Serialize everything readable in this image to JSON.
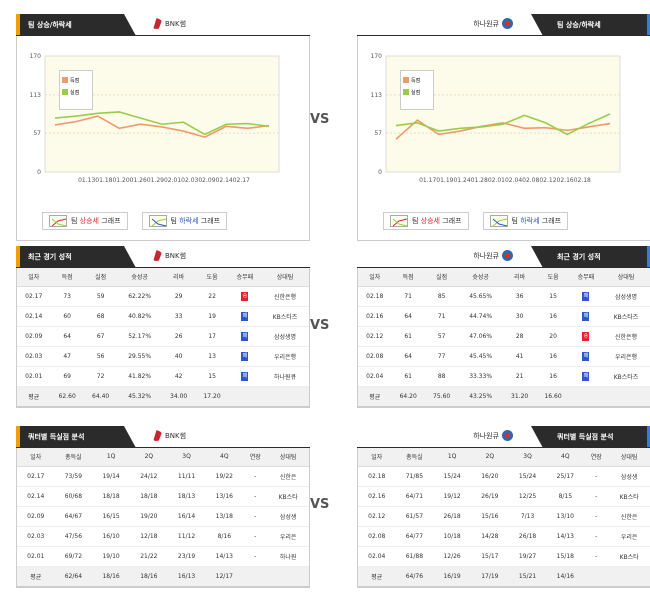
{
  "vs_label": "VS",
  "colors": {
    "loss": "#ee9a6a",
    "score": "#9acc4c",
    "win": "#e4232b",
    "lose": "#2d57c6"
  },
  "left": {
    "team": "BNK썸",
    "logo_icon": "bnk-logo",
    "trend": {
      "title": "팀 상승/하락세",
      "legend": {
        "loss": "득점",
        "score": "실점"
      },
      "chart_data": {
        "type": "line",
        "y_ticks": [
          0,
          57,
          113,
          170
        ],
        "ylim": [
          0,
          170
        ],
        "x_tick_text": "01.1301.1801.2001.2601.2902.0102.0302.0902.1402.17",
        "series": [
          {
            "name": "득점",
            "values": [
              69,
              74,
              82,
              64,
              70,
              66,
              60,
              51,
              67,
              64,
              68
            ]
          },
          {
            "name": "실점",
            "values": [
              79,
              82,
              86,
              88,
              79,
              70,
              73,
              55,
              70,
              71,
              67
            ]
          }
        ]
      },
      "btn_up": {
        "prefix": "팀 ",
        "mid": "상승세",
        "suffix": " 그래프"
      },
      "btn_down": {
        "prefix": "팀 ",
        "mid": "하락세",
        "suffix": " 그래프"
      }
    },
    "recent": {
      "title": "최근 경기 성적",
      "headers": [
        "일자",
        "득점",
        "실점",
        "슛성공",
        "리바",
        "도움",
        "승무패",
        "상대팀"
      ],
      "rows": [
        {
          "c": [
            "02.17",
            "73",
            "59",
            "62.22%",
            "29",
            "22"
          ],
          "r": "승",
          "rt": "w",
          "opp": "신한은행"
        },
        {
          "c": [
            "02.14",
            "60",
            "68",
            "40.82%",
            "33",
            "19"
          ],
          "r": "패",
          "rt": "l",
          "opp": "KB스타즈"
        },
        {
          "c": [
            "02.09",
            "64",
            "67",
            "52.17%",
            "26",
            "17"
          ],
          "r": "패",
          "rt": "l",
          "opp": "삼성생명"
        },
        {
          "c": [
            "02.03",
            "47",
            "56",
            "29.55%",
            "40",
            "13"
          ],
          "r": "패",
          "rt": "l",
          "opp": "우리은행"
        },
        {
          "c": [
            "02.01",
            "69",
            "72",
            "41.82%",
            "42",
            "15"
          ],
          "r": "패",
          "rt": "l",
          "opp": "하나원큐"
        }
      ],
      "avg": [
        "평균",
        "62.60",
        "64.40",
        "45.32%",
        "34.00",
        "17.20",
        "",
        ""
      ]
    },
    "quarter": {
      "title": "쿼터별 득실점 분석",
      "headers": [
        "일자",
        "총득실",
        "1Q",
        "2Q",
        "3Q",
        "4Q",
        "연장",
        "상대팀"
      ],
      "rows": [
        [
          "02.17",
          "73/59",
          "19/14",
          "24/12",
          "11/11",
          "19/22",
          "-",
          "신한은"
        ],
        [
          "02.14",
          "60/68",
          "18/18",
          "18/18",
          "18/13",
          "13/16",
          "-",
          "KB스타"
        ],
        [
          "02.09",
          "64/67",
          "16/15",
          "19/20",
          "16/14",
          "13/18",
          "-",
          "삼성생"
        ],
        [
          "02.03",
          "47/56",
          "16/10",
          "12/18",
          "11/12",
          "8/16",
          "-",
          "우리은"
        ],
        [
          "02.01",
          "69/72",
          "19/10",
          "21/22",
          "23/19",
          "14/13",
          "-",
          "하나원"
        ]
      ],
      "avg": [
        "평균",
        "62/64",
        "18/16",
        "18/16",
        "16/13",
        "12/17",
        "",
        ""
      ]
    }
  },
  "right": {
    "team": "하나원큐",
    "logo_icon": "hana-logo",
    "trend": {
      "title": "팀 상승/하락세",
      "legend": {
        "loss": "득점",
        "score": "실점"
      },
      "chart_data": {
        "type": "line",
        "y_ticks": [
          0,
          57,
          113,
          170
        ],
        "ylim": [
          0,
          170
        ],
        "x_tick_text": "01.1701.1901.2401.2802.0102.0402.0802.1202.1602.18",
        "series": [
          {
            "name": "득점",
            "values": [
              48,
              76,
              55,
              60,
              67,
              72,
              64,
              65,
              61,
              66,
              71
            ]
          },
          {
            "name": "실점",
            "values": [
              68,
              72,
              60,
              64,
              66,
              70,
              83,
              72,
              55,
              71,
              85
            ]
          }
        ]
      },
      "btn_up": {
        "prefix": "팀 ",
        "mid": "상승세",
        "suffix": " 그래프"
      },
      "btn_down": {
        "prefix": "팀 ",
        "mid": "하락세",
        "suffix": " 그래프"
      }
    },
    "recent": {
      "title": "최근 경기 성적",
      "headers": [
        "일자",
        "득점",
        "실점",
        "슛성공",
        "리바",
        "도움",
        "승무패",
        "상대팀"
      ],
      "rows": [
        {
          "c": [
            "02.18",
            "71",
            "85",
            "45.65%",
            "36",
            "15"
          ],
          "r": "패",
          "rt": "l",
          "opp": "삼성생명"
        },
        {
          "c": [
            "02.16",
            "64",
            "71",
            "44.74%",
            "30",
            "16"
          ],
          "r": "패",
          "rt": "l",
          "opp": "KB스타즈"
        },
        {
          "c": [
            "02.12",
            "61",
            "57",
            "47.06%",
            "28",
            "20"
          ],
          "r": "승",
          "rt": "w",
          "opp": "신한은행"
        },
        {
          "c": [
            "02.08",
            "64",
            "77",
            "45.45%",
            "41",
            "16"
          ],
          "r": "패",
          "rt": "l",
          "opp": "우리은행"
        },
        {
          "c": [
            "02.04",
            "61",
            "88",
            "33.33%",
            "21",
            "16"
          ],
          "r": "패",
          "rt": "l",
          "opp": "KB스타즈"
        }
      ],
      "avg": [
        "평균",
        "64.20",
        "75.60",
        "43.25%",
        "31.20",
        "16.60",
        "",
        ""
      ]
    },
    "quarter": {
      "title": "쿼터별 득실점 분석",
      "headers": [
        "일자",
        "총득실",
        "1Q",
        "2Q",
        "3Q",
        "4Q",
        "연장",
        "상대팀"
      ],
      "rows": [
        [
          "02.18",
          "71/85",
          "15/24",
          "16/20",
          "15/24",
          "25/17",
          "-",
          "삼성생"
        ],
        [
          "02.16",
          "64/71",
          "19/12",
          "26/19",
          "12/25",
          "8/15",
          "-",
          "KB스타"
        ],
        [
          "02.12",
          "61/57",
          "26/18",
          "15/16",
          "7/13",
          "13/10",
          "-",
          "신한은"
        ],
        [
          "02.08",
          "64/77",
          "10/18",
          "14/28",
          "26/18",
          "14/13",
          "-",
          "우리은"
        ],
        [
          "02.04",
          "61/88",
          "12/26",
          "15/17",
          "19/27",
          "15/18",
          "-",
          "KB스타"
        ]
      ],
      "avg": [
        "평균",
        "64/76",
        "16/19",
        "17/19",
        "15/21",
        "14/16",
        "",
        ""
      ]
    }
  }
}
